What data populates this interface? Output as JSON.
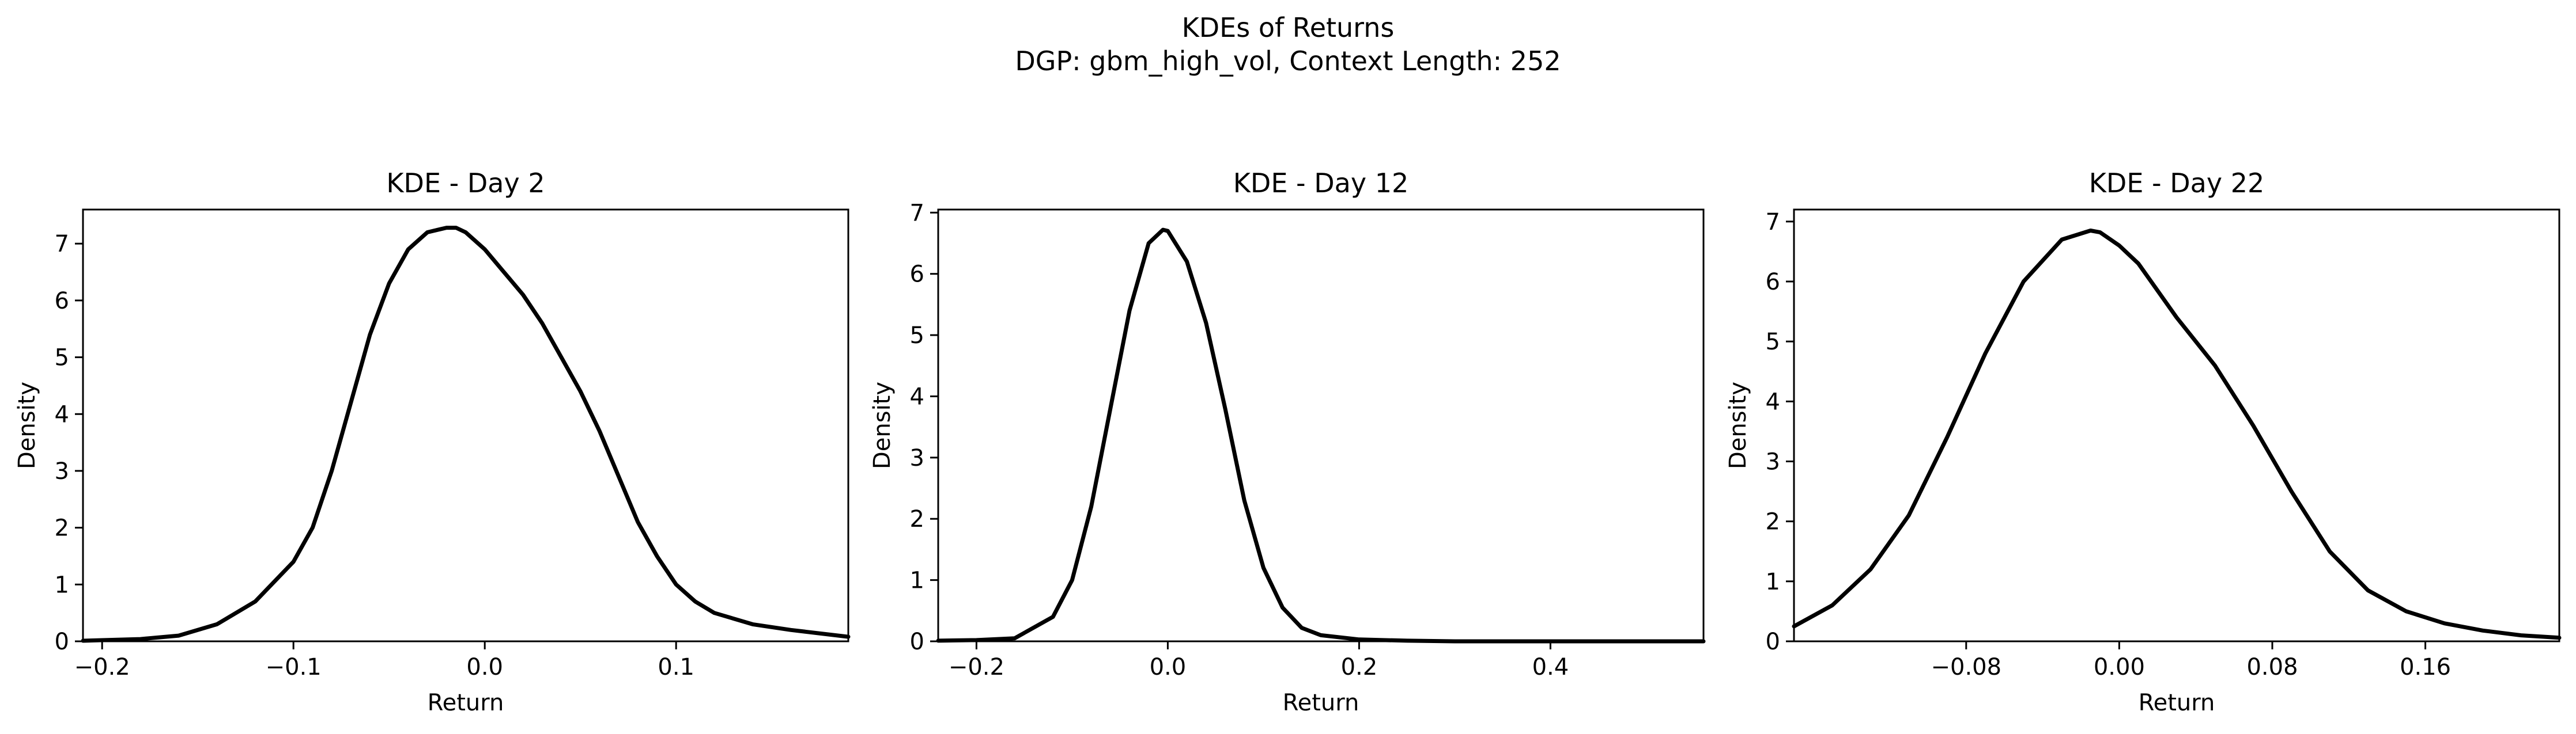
{
  "figure": {
    "title_line1": "KDEs of Returns",
    "title_line2": "DGP: gbm_high_vol, Context Length: 252"
  },
  "chart_data": [
    {
      "type": "line",
      "title": "KDE - Day 2",
      "xlabel": "Return",
      "ylabel": "Density",
      "xlim": [
        -0.21,
        0.19
      ],
      "ylim": [
        0,
        7.6
      ],
      "xticks": [
        -0.2,
        -0.1,
        0.0,
        0.1
      ],
      "xticklabels": [
        "−0.2",
        "−0.1",
        "0.0",
        "0.1"
      ],
      "yticks": [
        0,
        1,
        2,
        3,
        4,
        5,
        6,
        7
      ],
      "yticklabels": [
        "0",
        "1",
        "2",
        "3",
        "4",
        "5",
        "6",
        "7"
      ],
      "grid": false,
      "line_color": "#000000",
      "series": [
        {
          "x": [
            -0.21,
            -0.2,
            -0.18,
            -0.16,
            -0.14,
            -0.12,
            -0.1,
            -0.09,
            -0.08,
            -0.07,
            -0.06,
            -0.05,
            -0.04,
            -0.03,
            -0.02,
            -0.015,
            -0.01,
            0.0,
            0.01,
            0.02,
            0.03,
            0.04,
            0.05,
            0.06,
            0.07,
            0.08,
            0.09,
            0.1,
            0.11,
            0.12,
            0.14,
            0.16,
            0.19
          ],
          "y": [
            0.01,
            0.02,
            0.04,
            0.1,
            0.3,
            0.7,
            1.4,
            2.0,
            3.0,
            4.2,
            5.4,
            6.3,
            6.9,
            7.2,
            7.28,
            7.28,
            7.2,
            6.9,
            6.5,
            6.1,
            5.6,
            5.0,
            4.4,
            3.7,
            2.9,
            2.1,
            1.5,
            1.0,
            0.7,
            0.5,
            0.3,
            0.2,
            0.08
          ]
        }
      ]
    },
    {
      "type": "line",
      "title": "KDE - Day 12",
      "xlabel": "Return",
      "ylabel": "Density",
      "xlim": [
        -0.24,
        0.56
      ],
      "ylim": [
        0,
        7.05
      ],
      "xticks": [
        -0.2,
        0.0,
        0.2,
        0.4
      ],
      "xticklabels": [
        "−0.2",
        "0.0",
        "0.2",
        "0.4"
      ],
      "yticks": [
        0,
        1,
        2,
        3,
        4,
        5,
        6,
        7
      ],
      "yticklabels": [
        "0",
        "1",
        "2",
        "3",
        "4",
        "5",
        "6",
        "7"
      ],
      "grid": false,
      "line_color": "#000000",
      "series": [
        {
          "x": [
            -0.24,
            -0.2,
            -0.16,
            -0.12,
            -0.1,
            -0.08,
            -0.06,
            -0.04,
            -0.02,
            -0.005,
            0.0,
            0.02,
            0.04,
            0.06,
            0.08,
            0.1,
            0.12,
            0.14,
            0.16,
            0.2,
            0.25,
            0.3,
            0.4,
            0.56
          ],
          "y": [
            0.01,
            0.02,
            0.05,
            0.4,
            1.0,
            2.2,
            3.8,
            5.4,
            6.5,
            6.72,
            6.7,
            6.2,
            5.2,
            3.8,
            2.3,
            1.2,
            0.55,
            0.22,
            0.1,
            0.03,
            0.01,
            0.0,
            0.0,
            0.0
          ]
        }
      ]
    },
    {
      "type": "line",
      "title": "KDE - Day 22",
      "xlabel": "Return",
      "ylabel": "Density",
      "xlim": [
        -0.17,
        0.23
      ],
      "ylim": [
        0,
        7.2
      ],
      "xticks": [
        -0.08,
        0.0,
        0.08,
        0.16
      ],
      "xticklabels": [
        "−0.08",
        "0.00",
        "0.08",
        "0.16"
      ],
      "yticks": [
        0,
        1,
        2,
        3,
        4,
        5,
        6,
        7
      ],
      "yticklabels": [
        "0",
        "1",
        "2",
        "3",
        "4",
        "5",
        "6",
        "7"
      ],
      "grid": false,
      "line_color": "#000000",
      "series": [
        {
          "x": [
            -0.17,
            -0.15,
            -0.13,
            -0.11,
            -0.09,
            -0.07,
            -0.05,
            -0.03,
            -0.015,
            -0.01,
            0.0,
            0.01,
            0.03,
            0.05,
            0.07,
            0.09,
            0.11,
            0.13,
            0.15,
            0.17,
            0.19,
            0.21,
            0.23
          ],
          "y": [
            0.25,
            0.6,
            1.2,
            2.1,
            3.4,
            4.8,
            6.0,
            6.7,
            6.85,
            6.82,
            6.6,
            6.3,
            5.4,
            4.6,
            3.6,
            2.5,
            1.5,
            0.85,
            0.5,
            0.3,
            0.18,
            0.1,
            0.06
          ]
        }
      ]
    }
  ]
}
